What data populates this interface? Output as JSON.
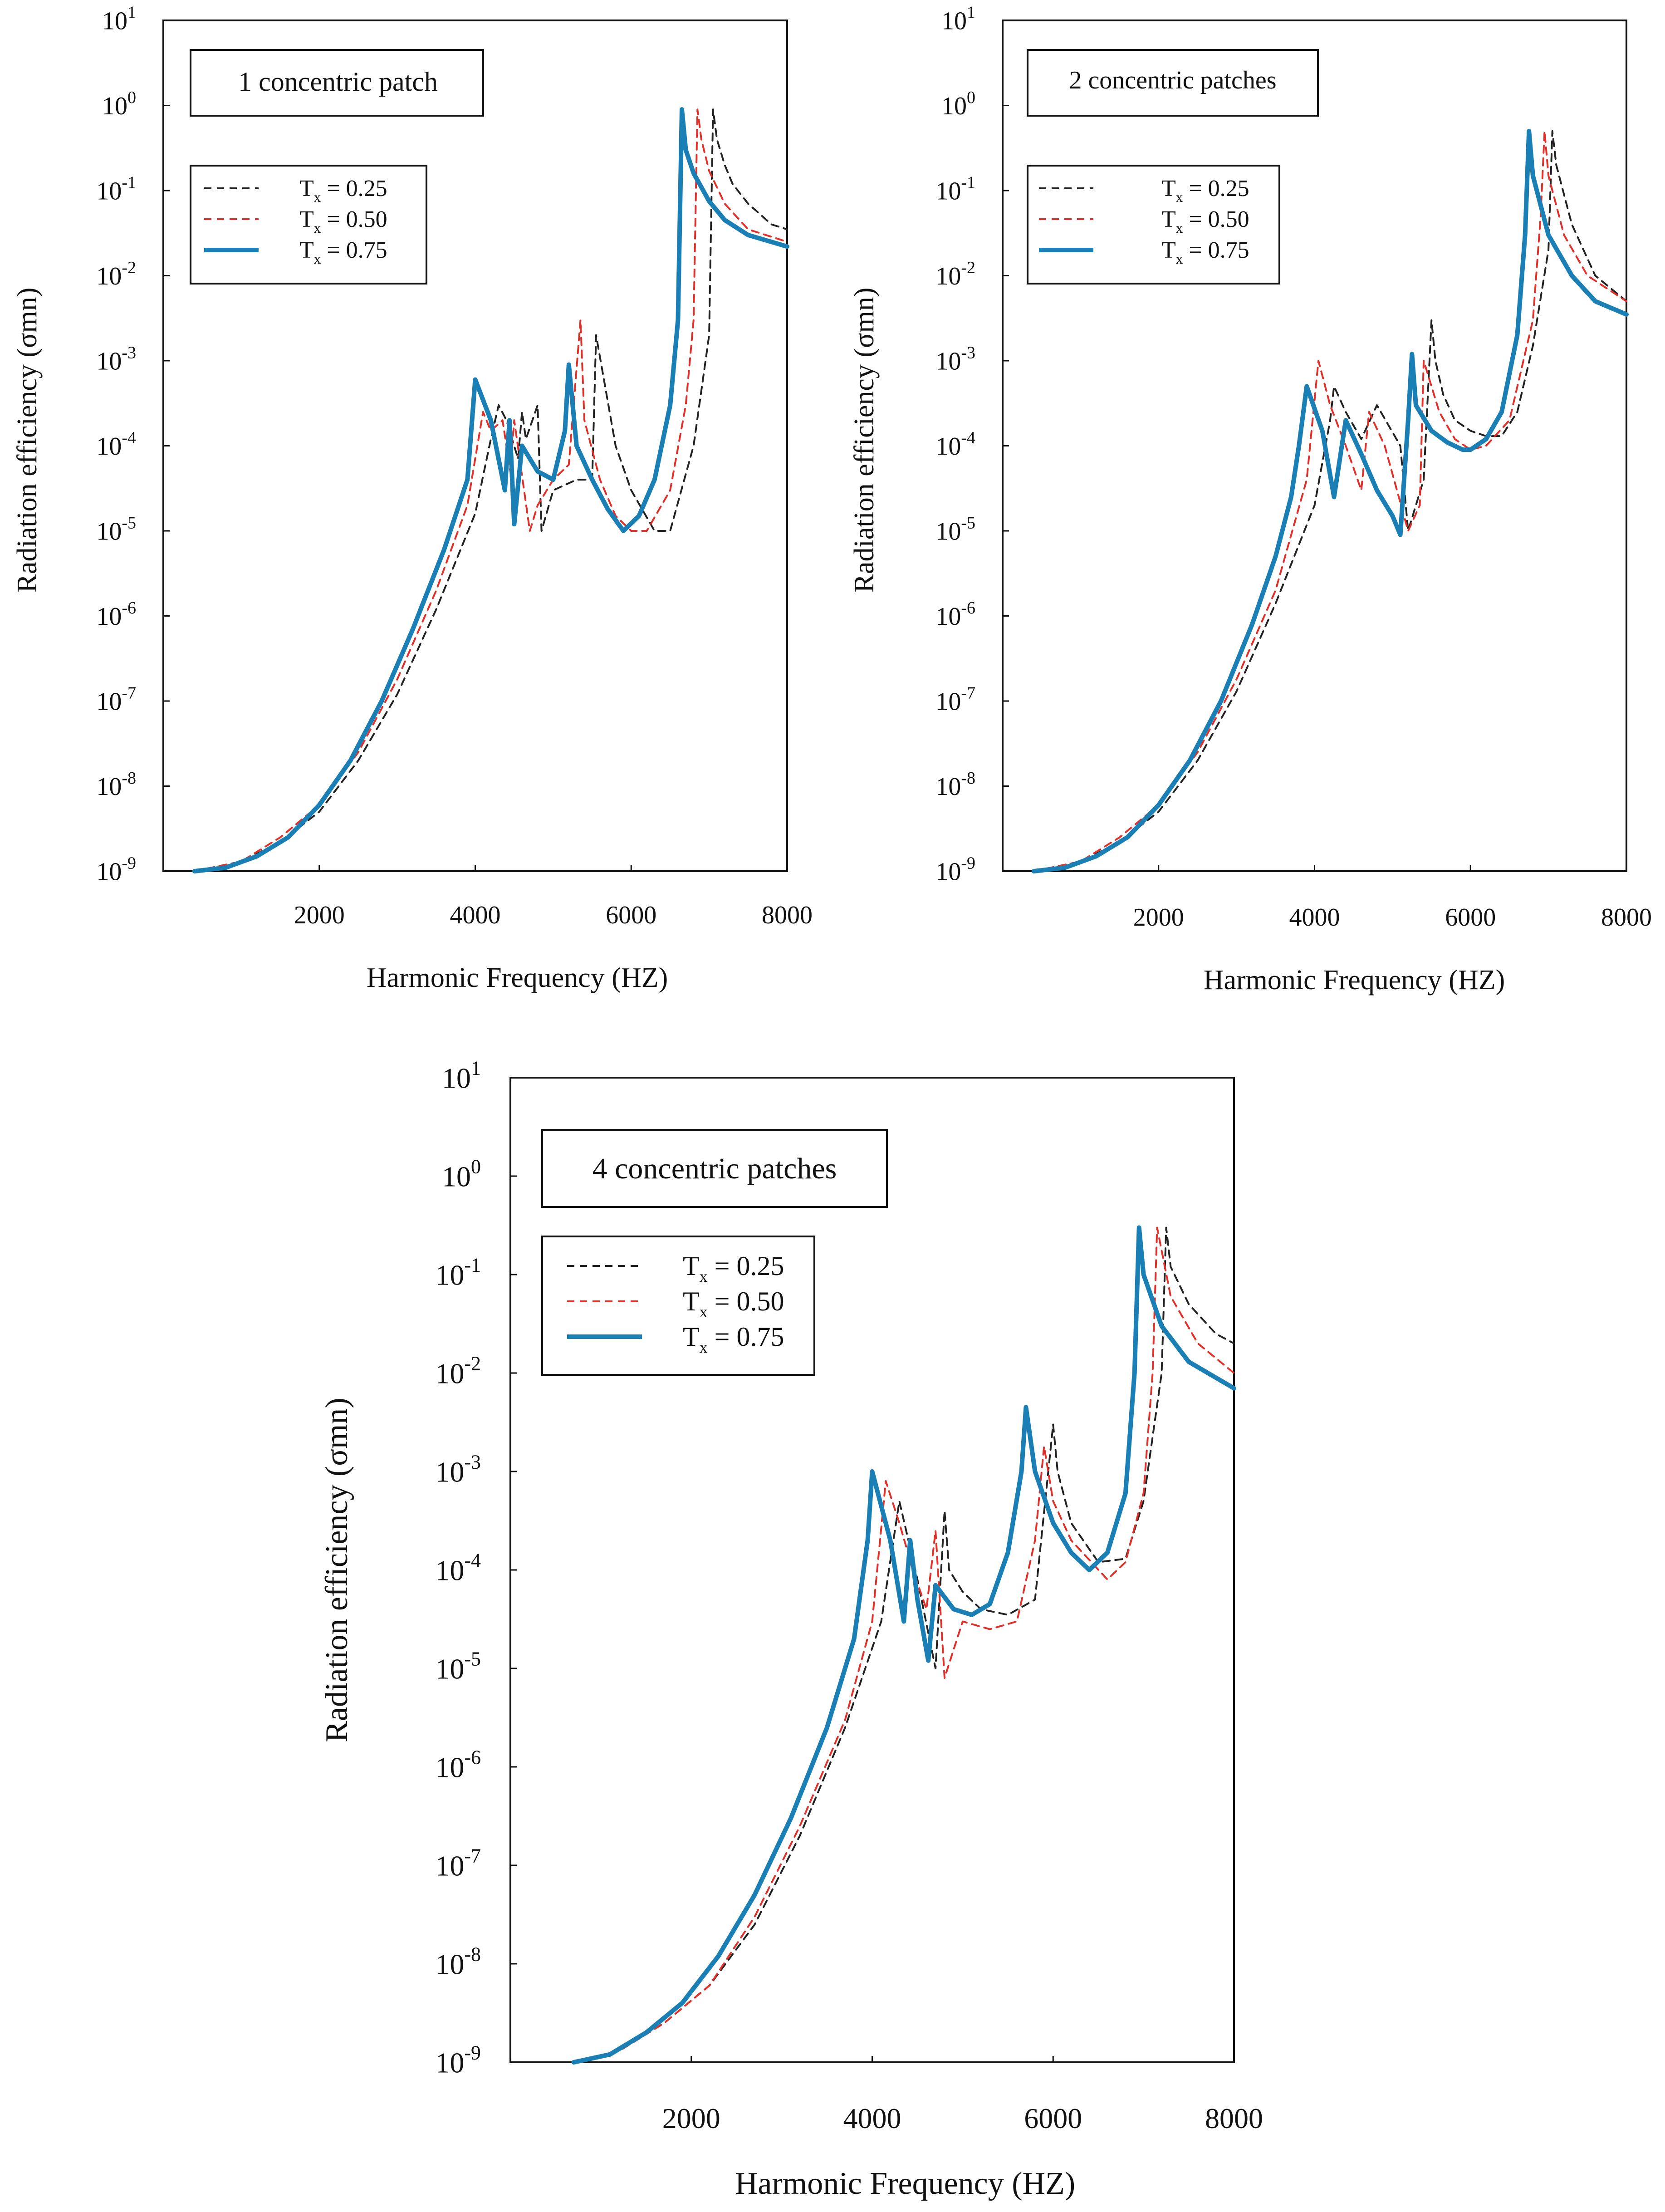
{
  "chart_data": [
    {
      "type": "line",
      "title": "1 concentric patch",
      "xlabel": "Harmonic Frequency (HZ)",
      "ylabel": "Radiation efficiency (σmn)",
      "yscale": "log",
      "xlim": [
        0,
        8000
      ],
      "ylim": [
        1e-09,
        10
      ],
      "grid": false,
      "legend_position": "top-left",
      "xticks": [
        "2000",
        "4000",
        "6000",
        "8000"
      ],
      "xtick_values": [
        2000,
        4000,
        6000,
        8000
      ],
      "yticks": [
        {
          "base": "10",
          "exp": "-9"
        },
        {
          "base": "10",
          "exp": "-8"
        },
        {
          "base": "10",
          "exp": "-7"
        },
        {
          "base": "10",
          "exp": "-6"
        },
        {
          "base": "10",
          "exp": "-5"
        },
        {
          "base": "10",
          "exp": "-4"
        },
        {
          "base": "10",
          "exp": "-3"
        },
        {
          "base": "10",
          "exp": "-2"
        },
        {
          "base": "10",
          "exp": "-1"
        },
        {
          "base": "10",
          "exp": "0"
        },
        {
          "base": "10",
          "exp": "1"
        }
      ],
      "series": [
        {
          "name": "Tx = 0.25",
          "label_main": "T",
          "label_sub": "x",
          "label_rest": " = 0.25",
          "color": "#222222",
          "style": "dashed",
          "x": [
            400,
            1000,
            1500,
            2000,
            2500,
            3000,
            3500,
            4000,
            4200,
            4300,
            4400,
            4550,
            4600,
            4650,
            4800,
            4850,
            5000,
            5300,
            5500,
            5550,
            5800,
            6000,
            6300,
            6500,
            6800,
            7000,
            7050,
            7100,
            7200,
            7300,
            7500,
            7800,
            8000
          ],
          "y": [
            1e-09,
            1.3e-09,
            2.2e-09,
            5e-09,
            2e-08,
            1.2e-07,
            1.2e-06,
            1.6e-05,
            0.00012,
            0.0003,
            0.0002,
            7e-05,
            0.00025,
            0.00012,
            0.0003,
            1e-05,
            3e-05,
            4e-05,
            4e-05,
            0.002,
            0.0001,
            3e-05,
            1e-05,
            1e-05,
            0.0001,
            0.002,
            0.9,
            0.4,
            0.2,
            0.12,
            0.07,
            0.04,
            0.035
          ]
        },
        {
          "name": "Tx = 0.50",
          "label_main": "T",
          "label_sub": "x",
          "label_rest": " = 0.50",
          "color": "#e0302a",
          "style": "dashed",
          "x": [
            400,
            1000,
            1500,
            2000,
            2500,
            3000,
            3500,
            3900,
            4100,
            4200,
            4350,
            4450,
            4500,
            4700,
            4800,
            5000,
            5200,
            5350,
            5400,
            5600,
            5800,
            6000,
            6200,
            6500,
            6700,
            6800,
            6850,
            6900,
            7000,
            7200,
            7500,
            8000
          ],
          "y": [
            1e-09,
            1.3e-09,
            2.5e-09,
            6e-09,
            2.5e-08,
            1.8e-07,
            2e-06,
            2e-05,
            0.00025,
            0.00015,
            0.0002,
            5e-05,
            0.0002,
            1e-05,
            2e-05,
            4e-05,
            6e-05,
            0.003,
            0.0002,
            4e-05,
            1.5e-05,
            1e-05,
            1e-05,
            3e-05,
            0.0003,
            0.003,
            0.9,
            0.4,
            0.17,
            0.07,
            0.035,
            0.025
          ]
        },
        {
          "name": "Tx = 0.75",
          "label_main": "T",
          "label_sub": "x",
          "label_rest": " = 0.75",
          "color": "#1a7fb5",
          "style": "solid",
          "x": [
            400,
            800,
            1200,
            1600,
            2000,
            2400,
            2800,
            3200,
            3600,
            3900,
            4000,
            4200,
            4380,
            4440,
            4500,
            4600,
            4800,
            5000,
            5150,
            5200,
            5300,
            5500,
            5700,
            5900,
            6100,
            6300,
            6500,
            6600,
            6650,
            6700,
            6800,
            7000,
            7200,
            7500,
            8000
          ],
          "y": [
            1e-09,
            1.1e-09,
            1.5e-09,
            2.5e-09,
            6e-09,
            2e-08,
            1e-07,
            7e-07,
            6e-06,
            4e-05,
            0.0006,
            0.0002,
            3e-05,
            0.0002,
            1.2e-05,
            0.0001,
            5e-05,
            4e-05,
            0.00015,
            0.0009,
            0.0001,
            4e-05,
            1.8e-05,
            1e-05,
            1.5e-05,
            4e-05,
            0.0003,
            0.003,
            0.9,
            0.3,
            0.16,
            0.075,
            0.045,
            0.03,
            0.022
          ]
        }
      ]
    },
    {
      "type": "line",
      "title": "2 concentric patches",
      "xlabel": "Harmonic Frequency (HZ)",
      "ylabel": "Radiation efficiency (σmn)",
      "yscale": "log",
      "xlim": [
        0,
        8000
      ],
      "ylim": [
        1e-09,
        10
      ],
      "grid": false,
      "legend_position": "top-left",
      "xticks": [
        "2000",
        "4000",
        "6000",
        "8000"
      ],
      "xtick_values": [
        2000,
        4000,
        6000,
        8000
      ],
      "yticks": [
        {
          "base": "10",
          "exp": "-9"
        },
        {
          "base": "10",
          "exp": "-8"
        },
        {
          "base": "10",
          "exp": "-7"
        },
        {
          "base": "10",
          "exp": "-6"
        },
        {
          "base": "10",
          "exp": "-5"
        },
        {
          "base": "10",
          "exp": "-4"
        },
        {
          "base": "10",
          "exp": "-3"
        },
        {
          "base": "10",
          "exp": "-2"
        },
        {
          "base": "10",
          "exp": "-1"
        },
        {
          "base": "10",
          "exp": "0"
        },
        {
          "base": "10",
          "exp": "1"
        }
      ],
      "series": [
        {
          "name": "Tx = 0.25",
          "label_main": "T",
          "label_sub": "x",
          "label_rest": " = 0.25",
          "color": "#222222",
          "style": "dashed",
          "x": [
            400,
            1000,
            1500,
            2000,
            2500,
            3000,
            3500,
            4000,
            4200,
            4250,
            4400,
            4600,
            4800,
            5100,
            5200,
            5400,
            5500,
            5550,
            5650,
            5800,
            6000,
            6200,
            6400,
            6600,
            6800,
            7000,
            7050,
            7100,
            7300,
            7600,
            8000
          ],
          "y": [
            1e-09,
            1.3e-09,
            2.2e-09,
            5e-09,
            2e-08,
            1.3e-07,
            1.4e-06,
            2e-05,
            0.0002,
            0.0005,
            0.00025,
            0.00012,
            0.0003,
            0.0001,
            1e-05,
            4e-05,
            0.003,
            0.001,
            0.0004,
            0.0002,
            0.00015,
            0.00013,
            0.00013,
            0.00025,
            0.0015,
            0.02,
            0.5,
            0.2,
            0.04,
            0.01,
            0.005
          ]
        },
        {
          "name": "Tx = 0.50",
          "label_main": "T",
          "label_sub": "x",
          "label_rest": " = 0.50",
          "color": "#e0302a",
          "style": "dashed",
          "x": [
            400,
            1000,
            1500,
            2000,
            2500,
            3000,
            3500,
            3900,
            4050,
            4200,
            4400,
            4600,
            4700,
            4900,
            5200,
            5350,
            5400,
            5600,
            5800,
            6000,
            6200,
            6500,
            6800,
            6900,
            6950,
            7000,
            7200,
            7500,
            8000
          ],
          "y": [
            1e-09,
            1.3e-09,
            2.5e-09,
            6e-09,
            2.5e-08,
            1.8e-07,
            2e-06,
            4e-05,
            0.001,
            0.0003,
            0.0001,
            3e-05,
            0.00025,
            0.0001,
            1e-05,
            2e-05,
            0.001,
            0.00025,
            0.00012,
            9e-05,
            0.0001,
            0.0002,
            0.003,
            0.05,
            0.5,
            0.15,
            0.03,
            0.01,
            0.005
          ]
        },
        {
          "name": "Tx = 0.75",
          "label_main": "T",
          "label_sub": "x",
          "label_rest": " = 0.75",
          "color": "#1a7fb5",
          "style": "solid",
          "x": [
            400,
            800,
            1200,
            1600,
            2000,
            2400,
            2800,
            3200,
            3500,
            3700,
            3800,
            3900,
            4100,
            4250,
            4400,
            4600,
            4800,
            5000,
            5100,
            5200,
            5250,
            5300,
            5500,
            5700,
            5900,
            6000,
            6200,
            6400,
            6600,
            6700,
            6750,
            6800,
            7000,
            7300,
            7600,
            8000
          ],
          "y": [
            1e-09,
            1.1e-09,
            1.5e-09,
            2.5e-09,
            6e-09,
            2e-08,
            1e-07,
            8e-07,
            5e-06,
            2.5e-05,
            0.0001,
            0.0005,
            0.00015,
            2.5e-05,
            0.0002,
            8e-05,
            3e-05,
            1.5e-05,
            9e-06,
            0.0002,
            0.0012,
            0.0003,
            0.00015,
            0.00011,
            9e-05,
            9e-05,
            0.00012,
            0.00025,
            0.002,
            0.03,
            0.5,
            0.15,
            0.03,
            0.01,
            0.005,
            0.0035
          ]
        }
      ]
    },
    {
      "type": "line",
      "title": "4 concentric patches",
      "xlabel": "Harmonic Frequency (HZ)",
      "ylabel": "Radiation efficiency (σmn)",
      "yscale": "log",
      "xlim": [
        0,
        8000
      ],
      "ylim": [
        1e-09,
        10
      ],
      "grid": false,
      "legend_position": "top-left",
      "xticks": [
        "2000",
        "4000",
        "6000",
        "8000"
      ],
      "xtick_values": [
        2000,
        4000,
        6000,
        8000
      ],
      "yticks": [
        {
          "base": "10",
          "exp": "-9"
        },
        {
          "base": "10",
          "exp": "-8"
        },
        {
          "base": "10",
          "exp": "-7"
        },
        {
          "base": "10",
          "exp": "-6"
        },
        {
          "base": "10",
          "exp": "-5"
        },
        {
          "base": "10",
          "exp": "-4"
        },
        {
          "base": "10",
          "exp": "-3"
        },
        {
          "base": "10",
          "exp": "-2"
        },
        {
          "base": "10",
          "exp": "-1"
        },
        {
          "base": "10",
          "exp": "0"
        },
        {
          "base": "10",
          "exp": "1"
        }
      ],
      "series": [
        {
          "name": "Tx = 0.25",
          "label_main": "T",
          "label_sub": "x",
          "label_rest": " = 0.25",
          "color": "#222222",
          "style": "dashed",
          "x": [
            700,
            1200,
            1700,
            2200,
            2700,
            3200,
            3700,
            4100,
            4300,
            4400,
            4500,
            4700,
            4800,
            4850,
            5000,
            5200,
            5500,
            5800,
            6000,
            6050,
            6200,
            6500,
            6800,
            7000,
            7200,
            7250,
            7300,
            7500,
            7800,
            8000
          ],
          "y": [
            1e-09,
            1.3e-09,
            2.5e-09,
            6e-09,
            2.5e-08,
            2e-07,
            2.5e-06,
            3e-05,
            0.0005,
            0.0002,
            8e-05,
            1e-05,
            0.0004,
            0.0001,
            6e-05,
            4e-05,
            3.5e-05,
            5e-05,
            0.003,
            0.001,
            0.0003,
            0.00012,
            0.00013,
            0.0005,
            0.01,
            0.3,
            0.12,
            0.05,
            0.025,
            0.02
          ]
        },
        {
          "name": "Tx = 0.50",
          "label_main": "T",
          "label_sub": "x",
          "label_rest": " = 0.50",
          "color": "#e0302a",
          "style": "dashed",
          "x": [
            700,
            1200,
            1700,
            2200,
            2700,
            3200,
            3700,
            4000,
            4150,
            4300,
            4450,
            4600,
            4700,
            4800,
            5000,
            5300,
            5600,
            5800,
            5900,
            6000,
            6200,
            6600,
            6800,
            7000,
            7100,
            7150,
            7300,
            7600,
            8000
          ],
          "y": [
            1e-09,
            1.3e-09,
            2.5e-09,
            6e-09,
            3e-08,
            2.5e-07,
            3e-06,
            3e-05,
            0.0008,
            0.0003,
            0.0001,
            4e-05,
            0.00025,
            8e-06,
            3e-05,
            2.5e-05,
            3e-05,
            0.0002,
            0.0018,
            0.0005,
            0.0002,
            8e-05,
            0.00012,
            0.0006,
            0.01,
            0.3,
            0.06,
            0.02,
            0.01
          ]
        },
        {
          "name": "Tx = 0.75",
          "label_main": "T",
          "label_sub": "x",
          "label_rest": " = 0.75",
          "color": "#1a7fb5",
          "style": "solid",
          "x": [
            700,
            1100,
            1500,
            1900,
            2300,
            2700,
            3100,
            3500,
            3800,
            3950,
            4000,
            4200,
            4350,
            4420,
            4500,
            4620,
            4700,
            4900,
            5100,
            5300,
            5500,
            5650,
            5700,
            5800,
            6000,
            6200,
            6400,
            6600,
            6800,
            6900,
            6950,
            7000,
            7200,
            7500,
            8000
          ],
          "y": [
            1e-09,
            1.2e-09,
            2e-09,
            4e-09,
            1.2e-08,
            5e-08,
            3e-07,
            2.5e-06,
            2e-05,
            0.0002,
            0.001,
            0.0002,
            3e-05,
            0.0002,
            5e-05,
            1.2e-05,
            7e-05,
            4e-05,
            3.5e-05,
            4.5e-05,
            0.00015,
            0.001,
            0.0045,
            0.001,
            0.0003,
            0.00015,
            0.0001,
            0.00015,
            0.0006,
            0.01,
            0.3,
            0.1,
            0.03,
            0.013,
            0.007
          ]
        }
      ]
    }
  ]
}
